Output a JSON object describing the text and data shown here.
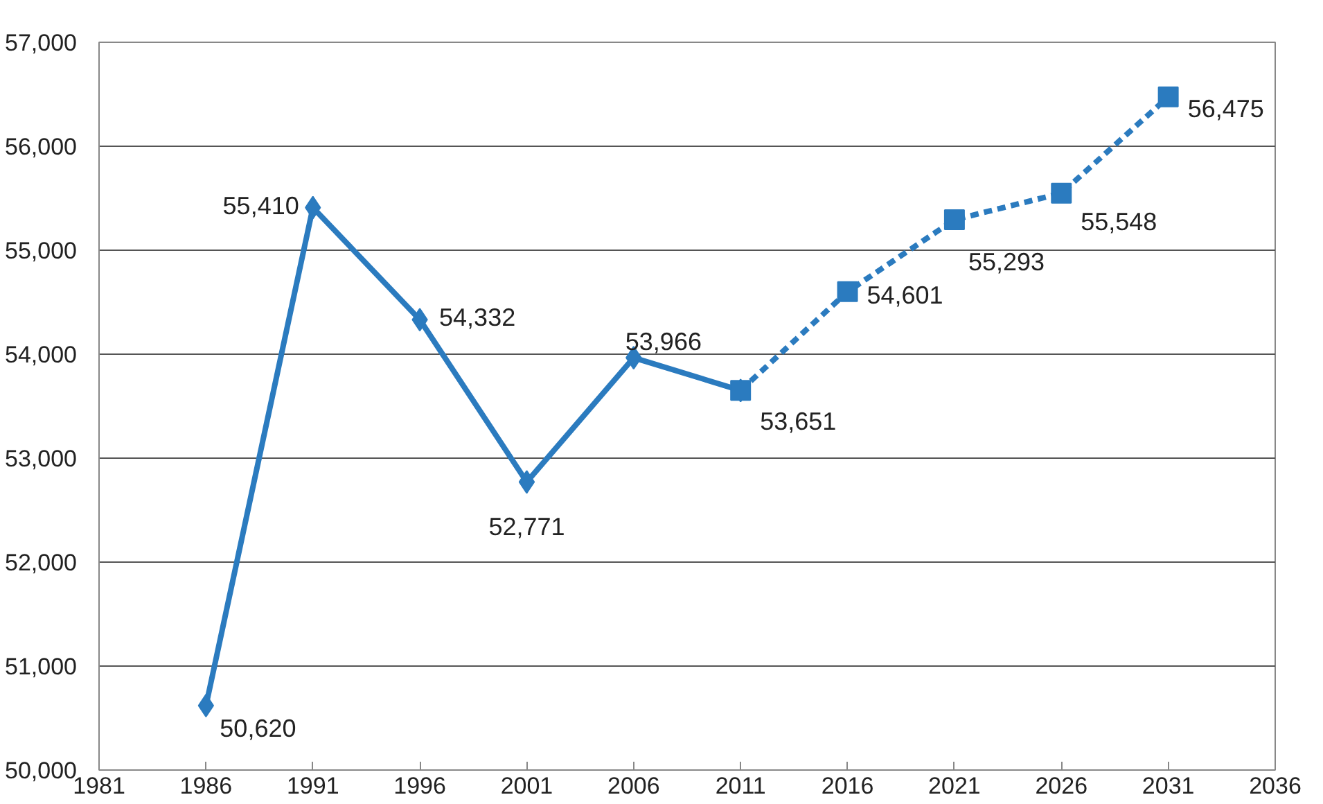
{
  "chart_data": {
    "type": "line",
    "xlim": [
      1981,
      2036
    ],
    "xticks": [
      1981,
      1986,
      1991,
      1996,
      2001,
      2006,
      2011,
      2016,
      2021,
      2026,
      2031,
      2036
    ],
    "ylim": [
      50000,
      57000
    ],
    "yticks": [
      {
        "value": 50000,
        "label": "50,000"
      },
      {
        "value": 51000,
        "label": "51,000"
      },
      {
        "value": 52000,
        "label": "52,000"
      },
      {
        "value": 53000,
        "label": "53,000"
      },
      {
        "value": 54000,
        "label": "54,000"
      },
      {
        "value": 55000,
        "label": "55,000"
      },
      {
        "value": 56000,
        "label": "56,000"
      },
      {
        "value": 57000,
        "label": "57,000"
      }
    ],
    "grid": "y",
    "series": [
      {
        "color": "#2b7bbf",
        "marker": "diamond",
        "line_style": "solid",
        "x": [
          1986,
          1991,
          1996,
          2001,
          2006,
          2011
        ],
        "values": [
          50620,
          55410,
          54332,
          52771,
          53966,
          53651
        ],
        "value_labels": [
          "50,620",
          "55,410",
          "54,332",
          "52,771",
          "53,966",
          null
        ]
      },
      {
        "color": "#2b7bbf",
        "marker": "square",
        "line_style": "dashed",
        "x": [
          2011,
          2016,
          2021,
          2026,
          2031
        ],
        "values": [
          53651,
          54601,
          55293,
          55548,
          56475
        ],
        "value_labels": [
          "53,651",
          "54,601",
          "55,293",
          "55,548",
          "56,475"
        ]
      }
    ]
  }
}
